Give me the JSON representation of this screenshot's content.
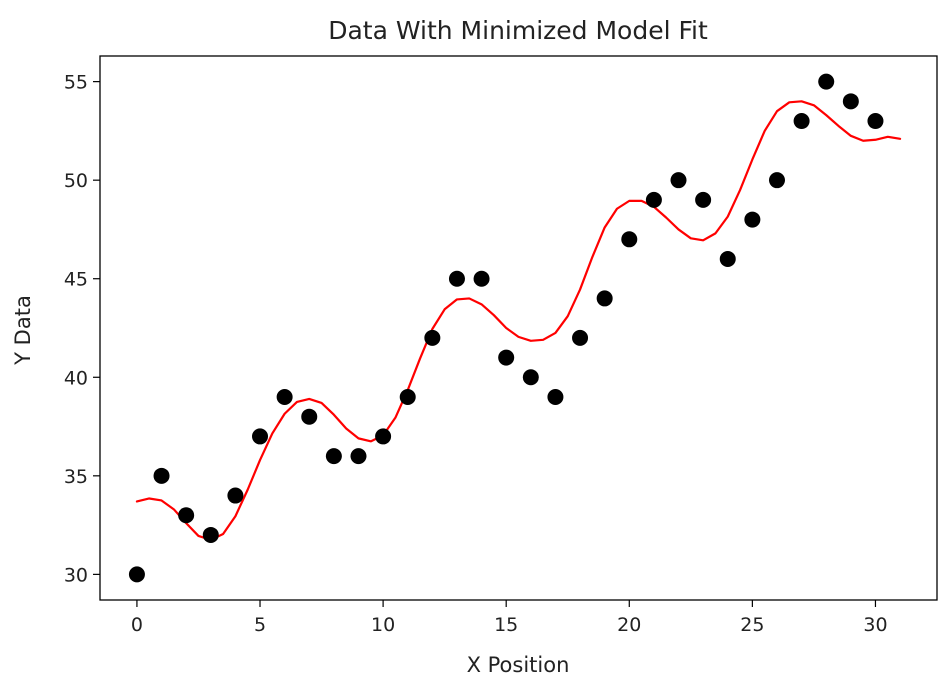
{
  "chart_data": {
    "type": "scatter",
    "title": "Data With Minimized Model Fit",
    "xlabel": "X Position",
    "ylabel": "Y Data",
    "xlim": [
      -1.5,
      32.5
    ],
    "ylim": [
      28.7,
      56.3
    ],
    "xticks": [
      0,
      5,
      10,
      15,
      20,
      25,
      30
    ],
    "yticks": [
      30,
      35,
      40,
      45,
      50,
      55
    ],
    "xtick_labels": [
      "0",
      "5",
      "10",
      "15",
      "20",
      "25",
      "30"
    ],
    "ytick_labels": [
      "30",
      "35",
      "40",
      "45",
      "50",
      "55"
    ],
    "grid": false,
    "series": [
      {
        "kind": "scatter",
        "color": "#000000",
        "marker": "circle",
        "x": [
          0,
          1,
          2,
          3,
          4,
          5,
          6,
          7,
          8,
          9,
          10,
          11,
          12,
          13,
          14,
          15,
          16,
          17,
          18,
          19,
          20,
          21,
          22,
          23,
          24,
          25,
          26,
          27,
          28,
          29,
          30
        ],
        "y": [
          30,
          35,
          33,
          32,
          34,
          37,
          39,
          38,
          36,
          36,
          37,
          39,
          42,
          45,
          45,
          41,
          40,
          39,
          42,
          44,
          47,
          49,
          50,
          49,
          46,
          48,
          50,
          53,
          55,
          54,
          53
        ]
      },
      {
        "kind": "line",
        "color": "#ff0000",
        "x": [
          0,
          0.5,
          1,
          1.5,
          2,
          2.5,
          3,
          3.5,
          4,
          4.5,
          5,
          5.5,
          6,
          6.5,
          7,
          7.5,
          8,
          8.5,
          9,
          9.5,
          10,
          10.5,
          11,
          11.5,
          12,
          12.5,
          13,
          13.5,
          14,
          14.5,
          15,
          15.5,
          16,
          16.5,
          17,
          17.5,
          18,
          18.5,
          19,
          19.5,
          20,
          20.5,
          21,
          21.5,
          22,
          22.5,
          23,
          23.5,
          24,
          24.5,
          25,
          25.5,
          26,
          26.5,
          27,
          27.5,
          28,
          28.5,
          29,
          29.5,
          30,
          30.5,
          31
        ],
        "y": [
          33.7,
          33.85,
          33.75,
          33.3,
          32.6,
          31.95,
          31.75,
          32.05,
          32.95,
          34.3,
          35.8,
          37.15,
          38.15,
          38.75,
          38.9,
          38.7,
          38.1,
          37.4,
          36.9,
          36.75,
          37.05,
          37.95,
          39.35,
          40.95,
          42.45,
          43.45,
          43.95,
          44.0,
          43.7,
          43.15,
          42.5,
          42.05,
          41.85,
          41.9,
          42.25,
          43.1,
          44.45,
          46.1,
          47.6,
          48.55,
          48.95,
          48.95,
          48.65,
          48.1,
          47.5,
          47.05,
          46.95,
          47.3,
          48.15,
          49.5,
          51.05,
          52.5,
          53.5,
          53.95,
          54.0,
          53.8,
          53.3,
          52.75,
          52.25,
          52.0,
          52.05,
          52.2,
          52.1
        ]
      }
    ]
  }
}
